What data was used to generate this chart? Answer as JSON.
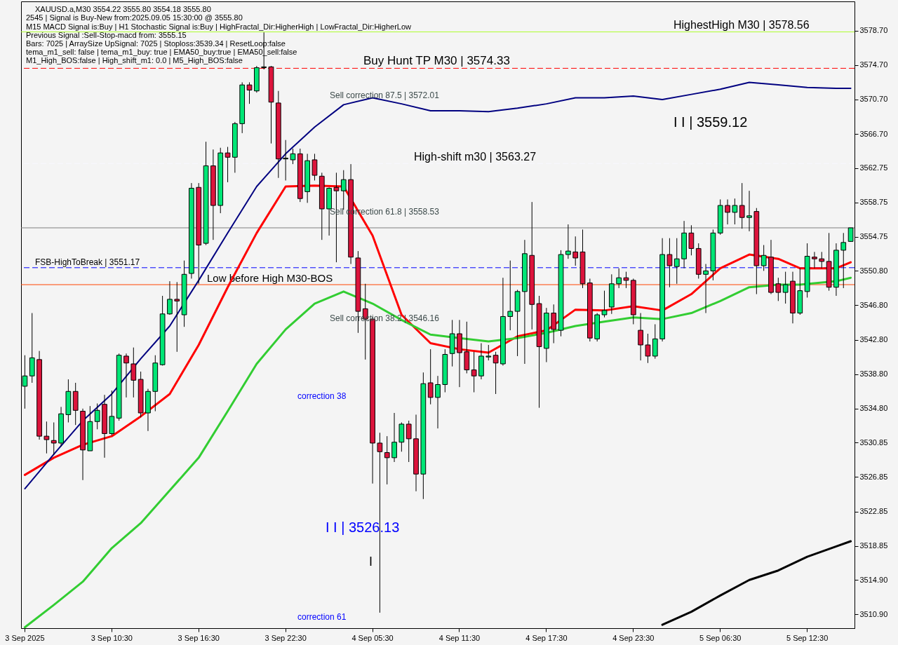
{
  "chart_data": {
    "type": "candlestick",
    "categories": [
      "3 Sep 2025",
      null,
      null,
      null,
      null,
      null,
      null,
      null,
      null,
      null,
      null,
      null,
      "3 Sep 10:30",
      null,
      null,
      null,
      null,
      null,
      null,
      null,
      null,
      null,
      null,
      null,
      "3 Sep 16:30",
      null,
      null,
      null,
      null,
      null,
      null,
      null,
      null,
      null,
      null,
      null,
      "3 Sep 22:30",
      null,
      null,
      null,
      null,
      null,
      null,
      null,
      null,
      null,
      null,
      null,
      "4 Sep 05:30",
      null,
      null,
      null,
      null,
      null,
      null,
      null,
      null,
      null,
      null,
      null,
      "4 Sep 11:30",
      null,
      null,
      null,
      null,
      null,
      null,
      null,
      null,
      null,
      null,
      null,
      "4 Sep 17:30",
      null,
      null,
      null,
      null,
      null,
      null,
      null,
      null,
      null,
      null,
      null,
      "4 Sep 23:30",
      null,
      null,
      null,
      null,
      null,
      null,
      null,
      null,
      null,
      null,
      null,
      "5 Sep 06:30",
      null,
      null,
      null,
      null,
      null,
      null,
      null,
      null,
      null,
      null,
      null,
      "5 Sep 12:30",
      null,
      null,
      null,
      null,
      null,
      null
    ],
    "ohlc": [
      [
        3537.4,
        3541.0,
        3534.8,
        3538.6
      ],
      [
        3538.6,
        3545.9,
        3537.8,
        3540.7
      ],
      [
        3540.5,
        3541.5,
        3531.2,
        3531.6
      ],
      [
        3531.6,
        3533.3,
        3529.6,
        3531.2
      ],
      [
        3531.1,
        3533.2,
        3529.4,
        3530.8
      ],
      [
        3530.8,
        3535.0,
        3530.4,
        3534.2
      ],
      [
        3534.1,
        3538.2,
        3533.2,
        3536.8
      ],
      [
        3536.8,
        3537.8,
        3532.9,
        3534.6
      ],
      [
        3534.5,
        3534.8,
        3526.5,
        3530.0
      ],
      [
        3529.9,
        3535.1,
        3529.9,
        3533.3
      ],
      [
        3533.3,
        3535.4,
        3532.4,
        3534.6
      ],
      [
        3535.3,
        3536.4,
        3529.1,
        3531.9
      ],
      [
        3531.9,
        3536.9,
        3531.7,
        3533.9
      ],
      [
        3533.7,
        3541.2,
        3533.4,
        3541.0
      ],
      [
        3540.9,
        3541.2,
        3536.1,
        3540.1
      ],
      [
        3540.0,
        3541.9,
        3536.1,
        3538.1
      ],
      [
        3538.2,
        3539.1,
        3533.8,
        3534.3
      ],
      [
        3534.3,
        3537.1,
        3532.2,
        3536.8
      ],
      [
        3536.8,
        3541.0,
        3534.5,
        3540.1
      ],
      [
        3539.9,
        3547.9,
        3539.8,
        3545.8
      ],
      [
        3545.8,
        3549.6,
        3545.7,
        3547.5
      ],
      [
        3547.5,
        3549.5,
        3541.4,
        3547.3
      ],
      [
        3545.7,
        3552.0,
        3544.3,
        3550.4
      ],
      [
        3550.5,
        3561.0,
        3549.9,
        3560.4
      ],
      [
        3560.5,
        3561.0,
        3549.3,
        3553.8
      ],
      [
        3554.0,
        3565.8,
        3553.8,
        3563.0
      ],
      [
        3563.0,
        3564.9,
        3554.4,
        3558.4
      ],
      [
        3558.4,
        3565.1,
        3557.5,
        3564.5
      ],
      [
        3564.5,
        3565.2,
        3561.1,
        3564.0
      ],
      [
        3564.0,
        3568.1,
        3562.2,
        3567.9
      ],
      [
        3567.9,
        3572.7,
        3566.8,
        3572.4
      ],
      [
        3572.4,
        3572.7,
        3570.2,
        3571.8
      ],
      [
        3571.7,
        3574.6,
        3571.5,
        3574.4
      ],
      [
        3574.4,
        3578.5,
        3574.2,
        3574.5
      ],
      [
        3574.5,
        3574.6,
        3565.6,
        3570.4
      ],
      [
        3570.3,
        3571.7,
        3561.6,
        3563.8
      ],
      [
        3563.8,
        3566.0,
        3561.3,
        3563.9
      ],
      [
        3563.7,
        3565.0,
        3563.2,
        3564.4
      ],
      [
        3564.4,
        3565.0,
        3558.8,
        3559.2
      ],
      [
        3560.0,
        3564.4,
        3558.7,
        3563.6
      ],
      [
        3563.7,
        3564.4,
        3561.3,
        3561.9
      ],
      [
        3561.8,
        3562.2,
        3554.4,
        3558.0
      ],
      [
        3558.0,
        3560.5,
        3554.9,
        3560.4
      ],
      [
        3560.5,
        3562.2,
        3551.8,
        3560.1
      ],
      [
        3560.1,
        3562.5,
        3557.9,
        3561.4
      ],
      [
        3561.4,
        3563.2,
        3551.6,
        3552.4
      ],
      [
        3552.3,
        3553.1,
        3543.6,
        3546.1
      ],
      [
        3546.4,
        3549.3,
        3540.5,
        3545.2
      ],
      [
        3545.2,
        3545.5,
        3526.1,
        3530.8
      ],
      [
        3530.8,
        3532.0,
        3511.1,
        3529.8
      ],
      [
        3529.7,
        3531.6,
        3526.0,
        3529.1
      ],
      [
        3529.1,
        3534.3,
        3528.6,
        3530.9
      ],
      [
        3530.9,
        3533.2,
        3529.8,
        3533.0
      ],
      [
        3533.0,
        3533.4,
        3528.6,
        3531.3
      ],
      [
        3531.3,
        3534.1,
        3525.2,
        3527.2
      ],
      [
        3527.2,
        3539.0,
        3524.3,
        3537.7
      ],
      [
        3537.8,
        3541.7,
        3535.3,
        3536.1
      ],
      [
        3536.1,
        3538.6,
        3532.5,
        3537.6
      ],
      [
        3537.6,
        3541.7,
        3536.7,
        3541.1
      ],
      [
        3541.2,
        3545.1,
        3539.7,
        3543.5
      ],
      [
        3543.5,
        3545.1,
        3537.3,
        3541.3
      ],
      [
        3541.4,
        3544.9,
        3538.9,
        3539.3
      ],
      [
        3539.3,
        3541.4,
        3536.7,
        3538.6
      ],
      [
        3538.6,
        3542.4,
        3538.2,
        3540.9
      ],
      [
        3540.8,
        3542.2,
        3540.4,
        3540.9
      ],
      [
        3541.0,
        3541.4,
        3536.5,
        3540.1
      ],
      [
        3540.0,
        3550.0,
        3539.8,
        3545.5
      ],
      [
        3545.5,
        3552.0,
        3543.9,
        3546.1
      ],
      [
        3546.1,
        3548.6,
        3540.9,
        3548.4
      ],
      [
        3548.4,
        3554.4,
        3540.0,
        3552.8
      ],
      [
        3552.6,
        3558.8,
        3544.0,
        3546.9
      ],
      [
        3547.0,
        3547.9,
        3534.9,
        3542.0
      ],
      [
        3541.8,
        3546.5,
        3540.2,
        3545.9
      ],
      [
        3545.9,
        3546.9,
        3542.4,
        3544.0
      ],
      [
        3543.9,
        3553.2,
        3543.2,
        3552.7
      ],
      [
        3552.7,
        3556.2,
        3552.2,
        3553.1
      ],
      [
        3553.0,
        3554.8,
        3551.4,
        3552.3
      ],
      [
        3553.0,
        3555.6,
        3548.8,
        3549.3
      ],
      [
        3549.4,
        3549.9,
        3542.6,
        3543.0
      ],
      [
        3542.9,
        3545.9,
        3542.6,
        3545.7
      ],
      [
        3545.7,
        3548.5,
        3545.4,
        3546.2
      ],
      [
        3546.6,
        3550.4,
        3545.8,
        3549.3
      ],
      [
        3549.3,
        3551.1,
        3548.8,
        3550.0
      ],
      [
        3550.0,
        3550.7,
        3548.8,
        3549.7
      ],
      [
        3549.7,
        3549.9,
        3544.6,
        3545.7
      ],
      [
        3543.9,
        3545.9,
        3540.4,
        3542.2
      ],
      [
        3542.2,
        3543.5,
        3540.1,
        3540.9
      ],
      [
        3540.9,
        3544.6,
        3540.6,
        3542.9
      ],
      [
        3542.9,
        3554.6,
        3542.6,
        3552.7
      ],
      [
        3552.7,
        3554.6,
        3548.9,
        3551.4
      ],
      [
        3551.3,
        3554.6,
        3549.3,
        3552.2
      ],
      [
        3552.2,
        3556.6,
        3551.1,
        3555.2
      ],
      [
        3555.2,
        3556.1,
        3552.6,
        3553.4
      ],
      [
        3553.4,
        3554.0,
        3549.9,
        3550.4
      ],
      [
        3550.4,
        3551.6,
        3545.9,
        3550.8
      ],
      [
        3550.8,
        3555.6,
        3549.7,
        3555.2
      ],
      [
        3555.2,
        3559.1,
        3555.0,
        3558.4
      ],
      [
        3558.4,
        3559.1,
        3556.2,
        3557.6
      ],
      [
        3557.6,
        3559.2,
        3556.2,
        3558.4
      ],
      [
        3558.4,
        3561.0,
        3555.7,
        3557.0
      ],
      [
        3557.0,
        3560.1,
        3555.4,
        3557.2
      ],
      [
        3557.7,
        3558.1,
        3548.1,
        3551.4
      ],
      [
        3551.4,
        3553.8,
        3550.8,
        3552.6
      ],
      [
        3552.4,
        3554.4,
        3548.1,
        3548.3
      ],
      [
        3549.3,
        3550.0,
        3547.3,
        3548.3
      ],
      [
        3548.3,
        3550.7,
        3547.0,
        3549.2
      ],
      [
        3549.6,
        3550.7,
        3544.7,
        3545.9
      ],
      [
        3545.9,
        3551.1,
        3545.7,
        3548.5
      ],
      [
        3548.4,
        3554.0,
        3547.7,
        3552.5
      ],
      [
        3552.4,
        3553.0,
        3551.1,
        3552.2
      ],
      [
        3552.2,
        3553.0,
        3551.1,
        3551.9
      ],
      [
        3551.9,
        3555.2,
        3548.5,
        3548.9
      ],
      [
        3548.9,
        3554.0,
        3547.9,
        3553.2
      ],
      [
        3553.2,
        3555.2,
        3548.8,
        3554.1
      ],
      [
        3554.22,
        3555.8,
        3554.18,
        3555.8
      ]
    ],
    "colors": [
      "#00e676",
      "#00e676",
      "#dc143c",
      "#dc143c",
      "#dc143c",
      "#00e676",
      "#00e676",
      "#dc143c",
      "#dc143c",
      "#00e676",
      "#00e676",
      "#dc143c",
      "#00e676",
      "#00e676",
      "#dc143c",
      "#dc143c",
      "#dc143c",
      "#00e676",
      "#00e676",
      "#00e676",
      "#00e676",
      "#dc143c",
      "#00e676",
      "#00e676",
      "#dc143c",
      "#00e676",
      "#dc143c",
      "#00e676",
      "#dc143c",
      "#00e676",
      "#00e676",
      "#dc143c",
      "#00e676",
      "#00e676",
      "#dc143c",
      "#dc143c",
      "#00e676",
      "#00e676",
      "#dc143c",
      "#00e676",
      "#dc143c",
      "#dc143c",
      "#00e676",
      "#dc143c",
      "#00e676",
      "#dc143c",
      "#dc143c",
      "#dc143c",
      "#dc143c",
      "#dc143c",
      "#dc143c",
      "#00e676",
      "#00e676",
      "#dc143c",
      "#dc143c",
      "#00e676",
      "#dc143c",
      "#00e676",
      "#00e676",
      "#00e676",
      "#dc143c",
      "#dc143c",
      "#dc143c",
      "#00e676",
      "#00e676",
      "#dc143c",
      "#00e676",
      "#00e676",
      "#00e676",
      "#00e676",
      "#dc143c",
      "#dc143c",
      "#00e676",
      "#dc143c",
      "#00e676",
      "#00e676",
      "#dc143c",
      "#dc143c",
      "#dc143c",
      "#00e676",
      "#00e676",
      "#00e676",
      "#00e676",
      "#dc143c",
      "#dc143c",
      "#dc143c",
      "#dc143c",
      "#00e676",
      "#00e676",
      "#dc143c",
      "#00e676",
      "#00e676",
      "#dc143c",
      "#dc143c",
      "#00e676",
      "#00e676",
      "#00e676",
      "#dc143c",
      "#00e676",
      "#dc143c",
      "#00e676",
      "#dc143c",
      "#00e676",
      "#dc143c",
      "#dc143c",
      "#00e676",
      "#dc143c",
      "#00e676",
      "#00e676",
      "#dc143c",
      "#dc143c",
      "#dc143c",
      "#00e676",
      "#00e676",
      "#00e676"
    ],
    "series": [
      {
        "type": "line",
        "color": "#ff0000",
        "values": [
          3527.1,
          null,
          null,
          null,
          3529.1,
          null,
          null,
          null,
          3530.6,
          null,
          null,
          null,
          3531.6,
          null,
          null,
          null,
          3533.9,
          null,
          null,
          null,
          3536.5,
          null,
          null,
          null,
          3542.2,
          null,
          null,
          null,
          3548.9,
          null,
          null,
          null,
          3555.2,
          null,
          null,
          null,
          3560.6,
          null,
          null,
          null,
          3560.7,
          null,
          null,
          null,
          3560.6,
          null,
          null,
          null,
          3554.9,
          null,
          null,
          null,
          3545.7,
          null,
          null,
          null,
          3542.4,
          null,
          null,
          null,
          3541.7,
          null,
          null,
          null,
          3541.3,
          null,
          null,
          null,
          3543.2,
          null,
          null,
          null,
          3543.9,
          null,
          null,
          null,
          3546.3,
          null,
          null,
          null,
          3546.2,
          null,
          null,
          null,
          3546.7,
          null,
          null,
          null,
          3546.2,
          null,
          null,
          null,
          3548.1,
          null,
          null,
          null,
          3551.1,
          null,
          null,
          null,
          3552.7,
          null,
          null,
          null,
          3552.2,
          null,
          null,
          3551.1,
          null,
          null,
          null,
          null,
          3551.1,
          null,
          3551.8
        ]
      },
      {
        "type": "line",
        "color": "#32cd32",
        "values": [
          3509.4,
          null,
          null,
          null,
          3512.0,
          null,
          null,
          null,
          3514.7,
          null,
          null,
          null,
          3518.6,
          null,
          null,
          null,
          3521.5,
          null,
          null,
          null,
          3525.3,
          null,
          null,
          null,
          3529.1,
          null,
          null,
          null,
          3534.5,
          null,
          null,
          null,
          3540.0,
          null,
          null,
          null,
          3544.0,
          null,
          null,
          null,
          3547.0,
          null,
          null,
          null,
          3548.4,
          null,
          null,
          null,
          3547.0,
          null,
          null,
          null,
          3545.1,
          null,
          null,
          null,
          3543.4,
          null,
          null,
          null,
          3543.0,
          null,
          null,
          null,
          3542.6,
          null,
          null,
          null,
          3543.0,
          null,
          null,
          null,
          3543.6,
          null,
          null,
          null,
          3544.4,
          null,
          null,
          null,
          3544.9,
          null,
          null,
          null,
          3545.4,
          null,
          null,
          null,
          3545.2,
          null,
          null,
          null,
          3545.9,
          null,
          null,
          null,
          3547.3,
          null,
          null,
          null,
          3548.9,
          null,
          null,
          null,
          3549.2,
          null,
          null,
          3549.2,
          null,
          null,
          null,
          null,
          3549.6,
          null,
          3550.0
        ]
      },
      {
        "type": "line",
        "color": "#000080",
        "values": [
          3525.5,
          null,
          null,
          null,
          3529.5,
          null,
          null,
          null,
          3533.4,
          null,
          null,
          null,
          3536.5,
          null,
          null,
          null,
          3540.6,
          null,
          null,
          null,
          3544.4,
          null,
          null,
          null,
          3549.7,
          null,
          null,
          null,
          3555.2,
          null,
          null,
          null,
          3560.6,
          null,
          null,
          null,
          3564.4,
          null,
          null,
          null,
          3567.5,
          null,
          null,
          null,
          3570.1,
          null,
          null,
          null,
          3570.9,
          null,
          null,
          null,
          3570.2,
          null,
          null,
          null,
          3569.4,
          null,
          null,
          null,
          3569.4,
          null,
          null,
          null,
          3569.3,
          null,
          null,
          null,
          3569.7,
          null,
          null,
          null,
          3570.2,
          null,
          null,
          null,
          3570.9,
          null,
          null,
          null,
          3570.9,
          null,
          null,
          null,
          3571.1,
          null,
          null,
          null,
          3570.7,
          null,
          null,
          null,
          3571.3,
          null,
          null,
          null,
          3571.9,
          null,
          null,
          null,
          3572.7,
          null,
          null,
          null,
          3572.4,
          null,
          null,
          null,
          3572.1,
          null,
          null,
          null,
          3572.0,
          null,
          3572.0
        ]
      },
      {
        "type": "line",
        "color": "#000000",
        "values": [
          null,
          null,
          null,
          null,
          null,
          null,
          null,
          null,
          null,
          null,
          null,
          null,
          null,
          null,
          null,
          null,
          null,
          null,
          null,
          null,
          null,
          null,
          null,
          null,
          null,
          null,
          null,
          null,
          null,
          null,
          null,
          null,
          null,
          null,
          null,
          null,
          null,
          null,
          null,
          null,
          null,
          null,
          null,
          null,
          null,
          null,
          null,
          null,
          null,
          null,
          null,
          null,
          null,
          null,
          null,
          null,
          null,
          null,
          null,
          null,
          null,
          null,
          null,
          null,
          null,
          null,
          null,
          null,
          null,
          null,
          null,
          null,
          null,
          null,
          null,
          null,
          null,
          null,
          null,
          null,
          null,
          null,
          null,
          null,
          null,
          null,
          null,
          null,
          3509.7,
          null,
          null,
          null,
          3511.2,
          null,
          null,
          null,
          3513.1,
          null,
          null,
          null,
          3514.9,
          null,
          null,
          null,
          3516.0,
          null,
          null,
          null,
          3517.6,
          null,
          null,
          null,
          3518.8,
          null,
          3519.4
        ]
      }
    ],
    "ylim": [
      3509.3,
      3582.1
    ],
    "yticks": [
      {
        "value": 3578.7,
        "label": "3578.70"
      },
      {
        "value": 3574.7,
        "label": "3574.70"
      },
      {
        "value": 3570.7,
        "label": "3570.70"
      },
      {
        "value": 3566.7,
        "label": "3566.70"
      },
      {
        "value": 3562.75,
        "label": "3562.75"
      },
      {
        "value": 3558.75,
        "label": "3558.75"
      },
      {
        "value": 3554.75,
        "label": "3554.75"
      },
      {
        "value": 3550.8,
        "label": "3550.80"
      },
      {
        "value": 3546.8,
        "label": "3546.80"
      },
      {
        "value": 3542.8,
        "label": "3542.80"
      },
      {
        "value": 3538.8,
        "label": "3538.80"
      },
      {
        "value": 3534.8,
        "label": "3534.80"
      },
      {
        "value": 3530.85,
        "label": "3530.85"
      },
      {
        "value": 3526.85,
        "label": "3526.85"
      },
      {
        "value": 3522.85,
        "label": "3522.85"
      },
      {
        "value": 3518.85,
        "label": "3518.85"
      },
      {
        "value": 3514.9,
        "label": "3514.90"
      },
      {
        "value": 3510.9,
        "label": "3510.90"
      }
    ],
    "ref_lines": [
      {
        "axis": "y",
        "value": 3578.56,
        "label": "HighestHigh M30 | 3578.56",
        "color": "#adff2f",
        "line_style": "solid"
      },
      {
        "axis": "y",
        "value": 3574.33,
        "label": "Buy Hunt TP M30 | 3574.33",
        "color": "#ff0000",
        "line_style": "dashed"
      },
      {
        "axis": "y",
        "value": 3563.27,
        "label": "High-shift m30 | 3563.27",
        "color": "#f8f8ff",
        "line_style": "dashed"
      },
      {
        "axis": "y",
        "value": 3555.8,
        "color": "#808080",
        "line_style": "solid"
      },
      {
        "axis": "y",
        "value": 3551.17,
        "label": "FSB-HighToBreak | 3551.17",
        "color": "#0000ff",
        "line_style": "dashed"
      },
      {
        "axis": "y",
        "value": 3549.2,
        "label": "Low before High   M30-BOS",
        "color": "#ff4500",
        "line_style": "solid"
      }
    ],
    "annotations": [
      "XAUUSD.a,M30  3554.22 3555.80 3554.18 3555.80",
      "2545 | Signal is Buy-New from:2025.09.05 15:30:00 @ 3555.80",
      "M15 MACD Signal is:Buy | H1 Stochastic Signal is:Buy | HighFractal_Dir:HigherHigh | LowFractal_Dir:HigherLow",
      "Previous Signal :Sell-Stop-macd from: 3555.15",
      "Bars: 7025 | ArraySize UpSignal: 7025 | Stoploss:3539.34 | ResetLoop:false",
      "tema_m1_sell: false | tema_m1_buy: true | EMA50_buy:true | EMA50_sell:false",
      "M1_High_BOS:false | High_shift_m1: 0.0 | M5_High_BOS:false",
      "Sell correction 87.5 | 3572.01",
      "Sell correction 61.8 | 3558.53",
      "Sell correction 38.2 | 3546.16",
      "I I | 3559.12",
      "I I | 3526.13",
      "correction 38",
      "correction 61",
      "I"
    ]
  }
}
